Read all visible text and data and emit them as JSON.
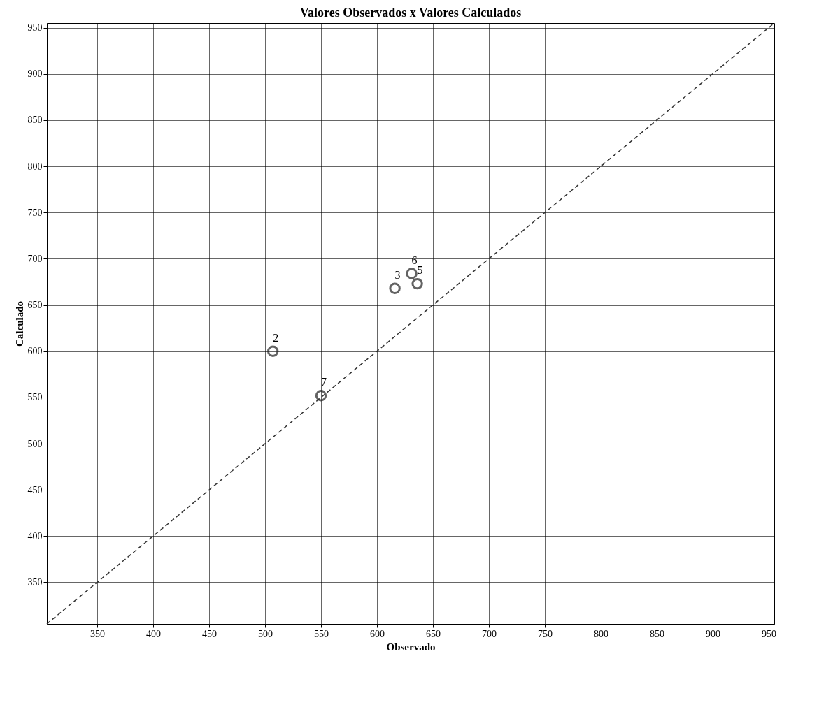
{
  "chart_data": {
    "type": "scatter",
    "title": "Valores Observados x Valores Calculados",
    "xlabel": "Observado",
    "ylabel": "Calculado",
    "xlim": [
      305,
      955
    ],
    "ylim": [
      305,
      955
    ],
    "xticks": [
      350,
      400,
      450,
      500,
      550,
      600,
      650,
      700,
      750,
      800,
      850,
      900,
      950
    ],
    "yticks": [
      350,
      400,
      450,
      500,
      550,
      600,
      650,
      700,
      750,
      800,
      850,
      900,
      950
    ],
    "grid": true,
    "series": [
      {
        "color": "#222222",
        "marker": "circle",
        "x": [
          507,
          550,
          616,
          631,
          636
        ],
        "values": [
          600,
          552,
          668,
          684,
          673
        ]
      },
      {
        "type": "line",
        "color": "#333333",
        "line_style": "dashed",
        "marker": "none",
        "x": [
          305,
          955
        ],
        "values": [
          305,
          955
        ]
      }
    ],
    "annotations": [
      {
        "text": "2",
        "x": 507,
        "y": 600
      },
      {
        "text": "7",
        "x": 550,
        "y": 552
      },
      {
        "text": "3",
        "x": 616,
        "y": 668
      },
      {
        "text": "6",
        "x": 631,
        "y": 684
      },
      {
        "text": "5",
        "x": 636,
        "y": 673
      }
    ]
  }
}
